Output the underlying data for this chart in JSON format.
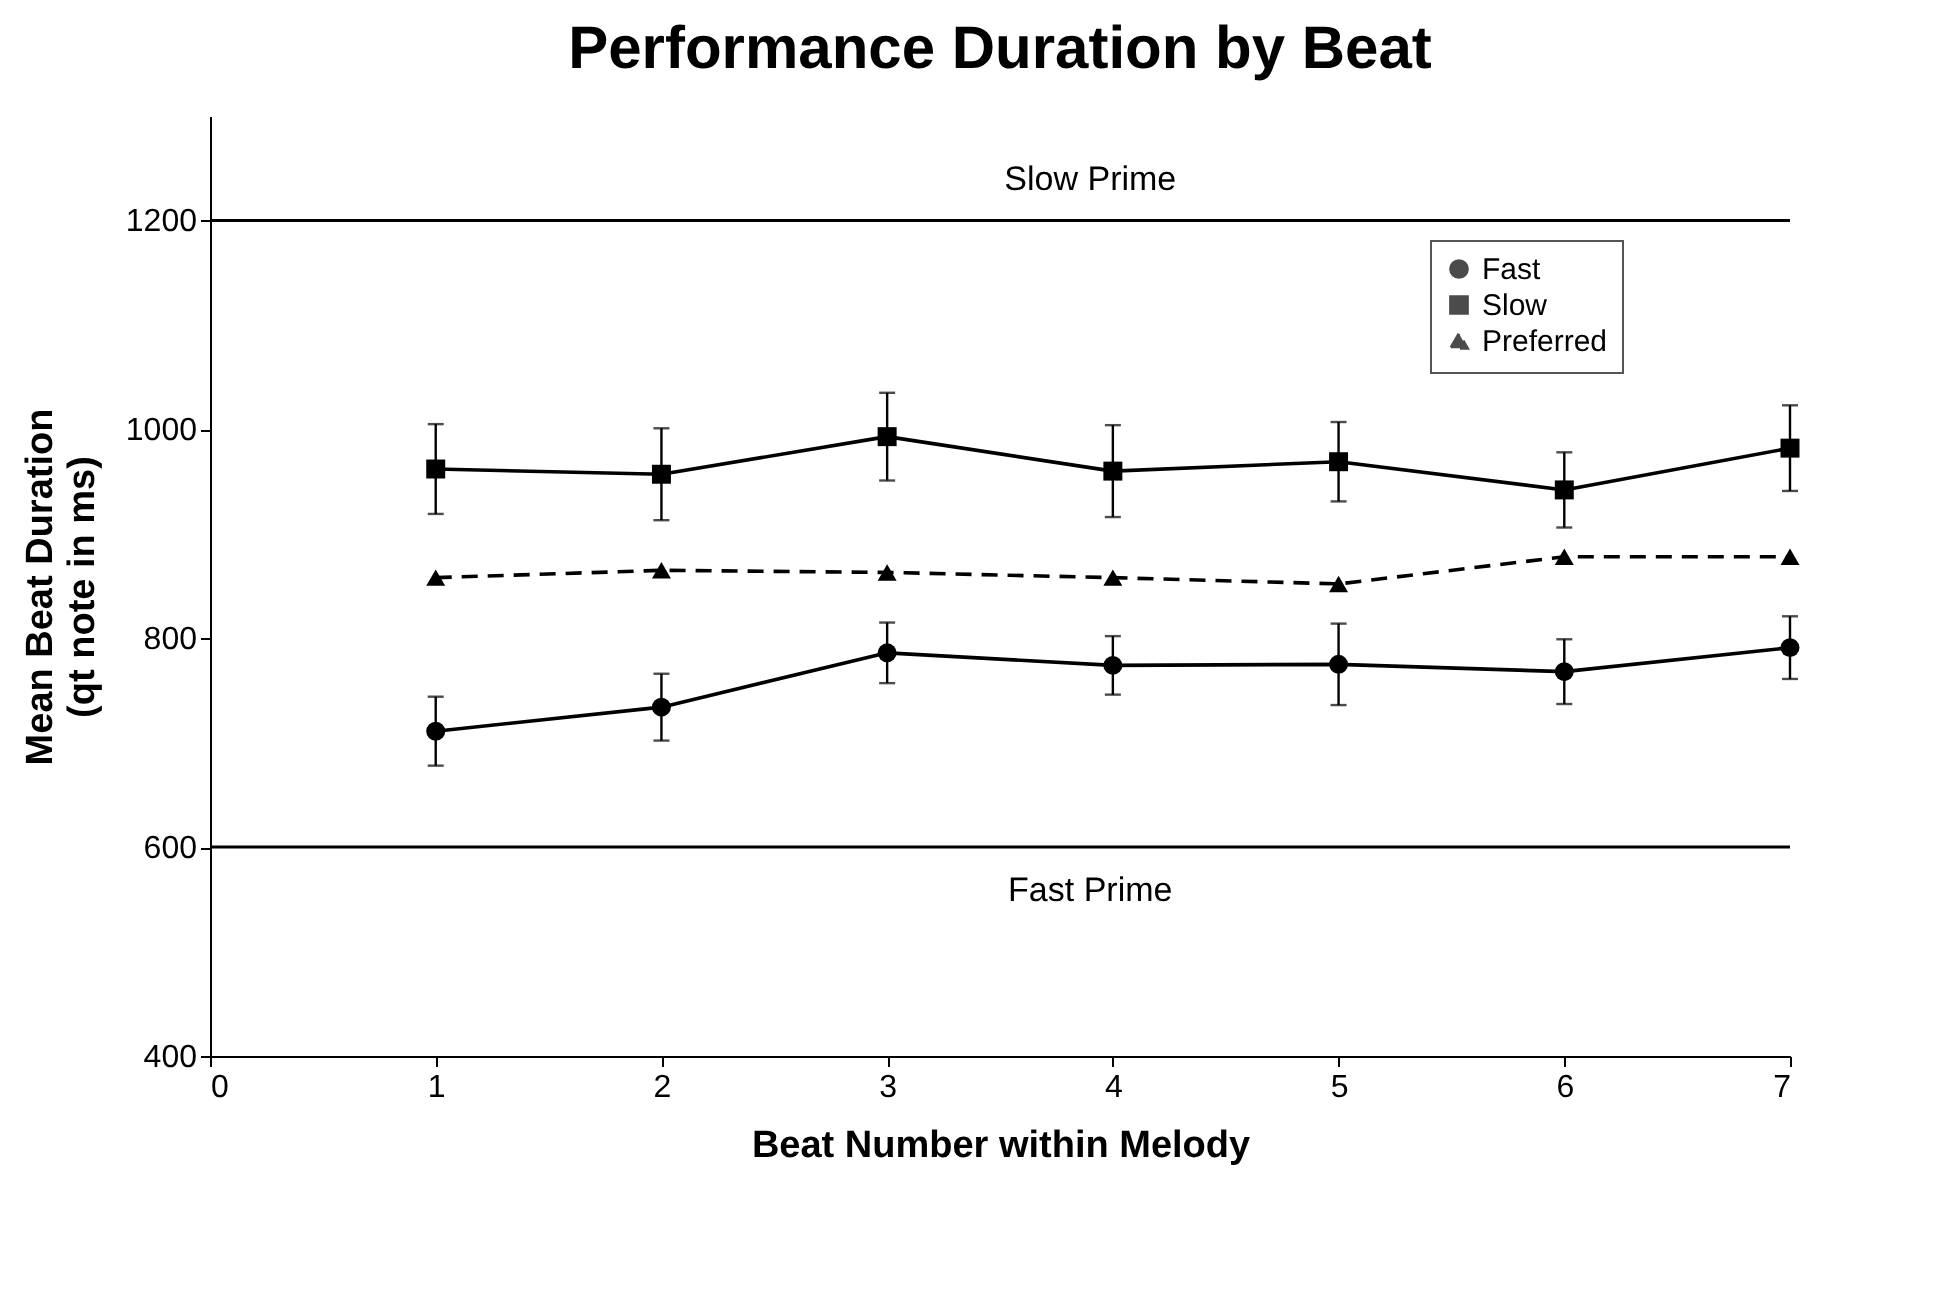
{
  "chart_data": {
    "type": "line",
    "title": "Performance Duration by Beat",
    "xlabel": "Beat Number within Melody",
    "ylabel": "Mean Beat Duration (qt note in ms)",
    "x": [
      1,
      2,
      3,
      4,
      5,
      6,
      7
    ],
    "series": [
      {
        "name": "Fast",
        "color": "#000000",
        "marker": "circle",
        "line_style": "solid",
        "values": [
          711,
          734,
          786,
          774,
          775,
          768,
          791
        ],
        "errors": [
          33,
          32,
          29,
          28,
          39,
          31,
          30
        ]
      },
      {
        "name": "Slow",
        "color": "#000000",
        "marker": "square",
        "line_style": "solid",
        "values": [
          962,
          957,
          993,
          960,
          969,
          942,
          982
        ],
        "errors": [
          43,
          44,
          42,
          44,
          38,
          36,
          41
        ]
      },
      {
        "name": "Preferred",
        "color": "#000000",
        "marker": "triangle",
        "line_style": "dashed",
        "values": [
          858,
          865,
          863,
          858,
          852,
          878,
          878
        ]
      }
    ],
    "xlim": [
      0,
      7
    ],
    "xticks": [
      0,
      1,
      2,
      3,
      4,
      5,
      6,
      7
    ],
    "ylim": [
      400,
      1300
    ],
    "yticks": [
      400,
      600,
      800,
      1000,
      1200
    ],
    "ref_lines": [
      {
        "axis": "y",
        "value": 1200,
        "label": "Slow Prime",
        "color": "#000000"
      },
      {
        "axis": "y",
        "value": 600,
        "label": "Fast Prime",
        "color": "#000000"
      }
    ],
    "grid": false,
    "legend": "top right"
  }
}
